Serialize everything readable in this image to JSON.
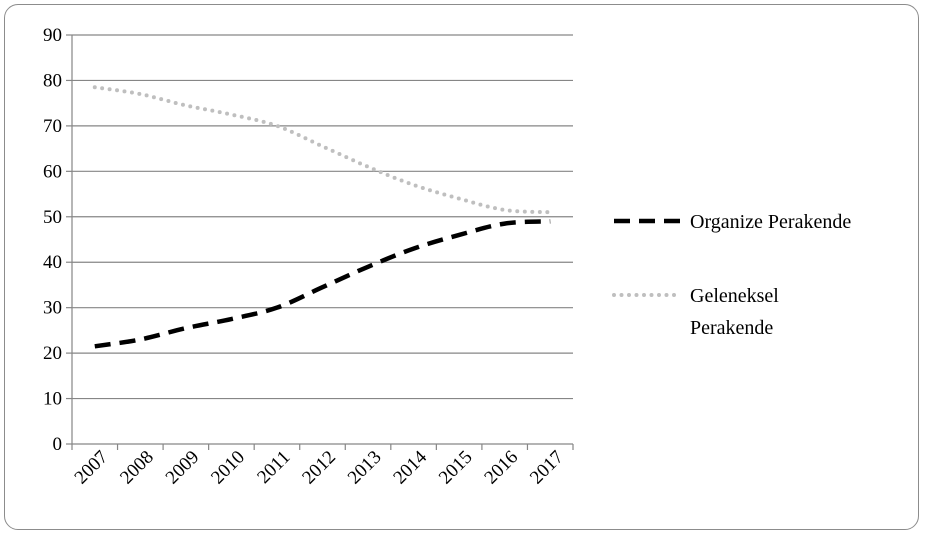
{
  "chart_data": {
    "type": "line",
    "categories": [
      "2007",
      "2008",
      "2009",
      "2010",
      "2011",
      "2012",
      "2013",
      "2014",
      "2015",
      "2016",
      "2017"
    ],
    "y_ticks": [
      "0",
      "10",
      "20",
      "30",
      "40",
      "50",
      "60",
      "70",
      "80",
      "90"
    ],
    "ylim": [
      0,
      90
    ],
    "grid": true,
    "legend_position": "right",
    "series": [
      {
        "name": "Organize Perakende",
        "legend_lines": [
          "Organize Perakende"
        ],
        "values": [
          21.5,
          23,
          25.5,
          27.5,
          30,
          34.5,
          39,
          43,
          46,
          48.5,
          49
        ],
        "color": "#000000",
        "style": "dashed"
      },
      {
        "name": "Geleneksel Perakende",
        "legend_lines": [
          "Geleneksel",
          "Perakende"
        ],
        "values": [
          78.5,
          77,
          74.5,
          72.5,
          70,
          65.5,
          61,
          57,
          54,
          51.5,
          51
        ],
        "color": "#bfbfbf",
        "style": "dotted"
      }
    ]
  }
}
